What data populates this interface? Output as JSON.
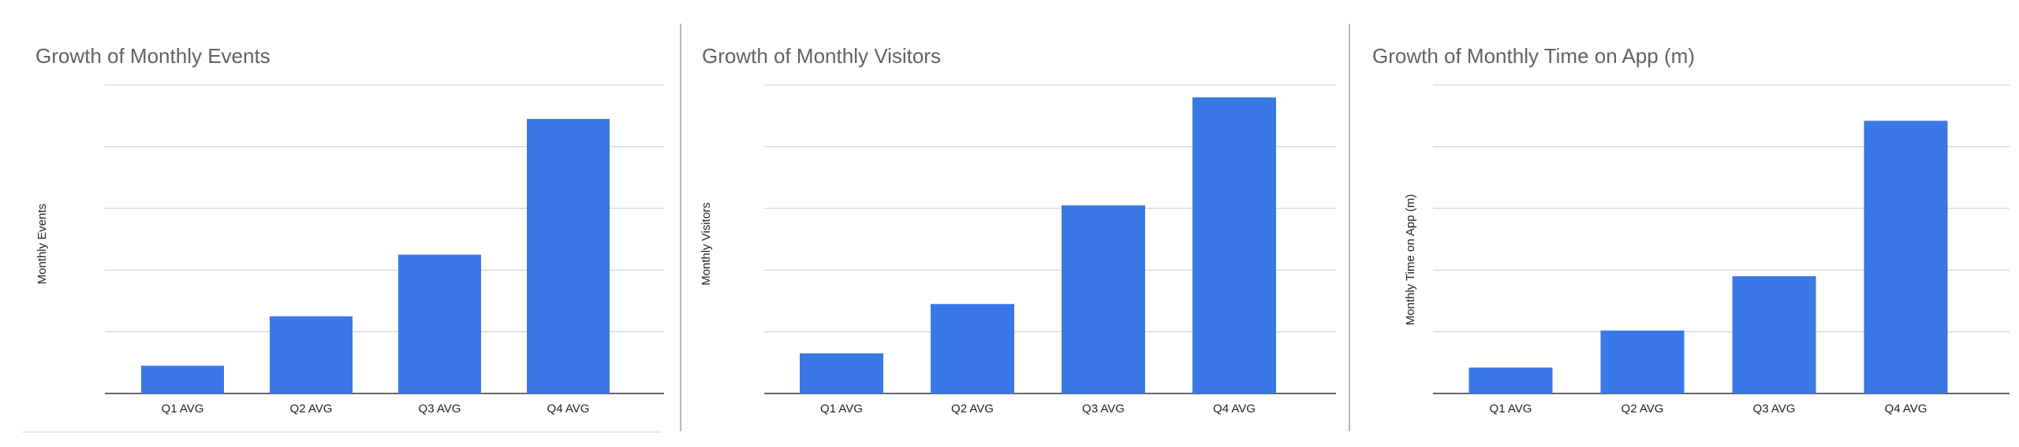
{
  "chart_data": [
    {
      "type": "bar",
      "title": "Growth of Monthly Events",
      "xlabel": "",
      "ylabel": "Monthly Events",
      "categories": [
        "Q1 AVG",
        "Q2 AVG",
        "Q3 AVG",
        "Q4 AVG"
      ],
      "values": [
        0.45,
        1.25,
        2.25,
        4.45
      ],
      "ylim": [
        0,
        5
      ],
      "grid": true,
      "color": "#3b78e7"
    },
    {
      "type": "bar",
      "title": "Growth of Monthly Visitors",
      "xlabel": "",
      "ylabel": "Monthly Visitors",
      "categories": [
        "Q1 AVG",
        "Q2 AVG",
        "Q3 AVG",
        "Q4 AVG"
      ],
      "values": [
        0.65,
        1.45,
        3.05,
        4.8
      ],
      "ylim": [
        0,
        5
      ],
      "grid": true,
      "color": "#3b78e7"
    },
    {
      "type": "bar",
      "title": "Growth of Monthly Time on App (m)",
      "xlabel": "",
      "ylabel": "Monthly Time on App (m)",
      "categories": [
        "Q1 AVG",
        "Q2 AVG",
        "Q3 AVG",
        "Q4 AVG"
      ],
      "values": [
        0.42,
        1.02,
        1.9,
        4.42
      ],
      "ylim": [
        0,
        5
      ],
      "grid": true,
      "color": "#3b78e7"
    }
  ]
}
